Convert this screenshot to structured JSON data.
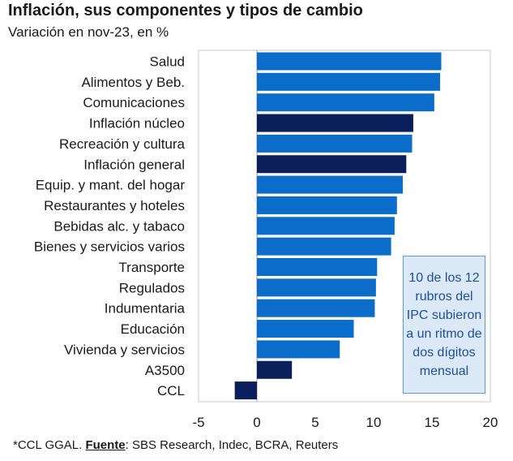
{
  "chart_data": {
    "type": "bar",
    "orientation": "horizontal",
    "title": "Inflación, sus componentes y tipos de cambio",
    "subtitle": "Variación en nov-23, en %",
    "categories": [
      "Salud",
      "Alimentos y Beb.",
      "Comunicaciones",
      "Inflación núcleo",
      "Recreación y cultura",
      "Inflación general",
      "Equip. y mant. del hogar",
      "Restaurantes y hoteles",
      "Bebidas alc. y tabaco",
      "Bienes y servicios varios",
      "Transporte",
      "Regulados",
      "Indumentaria",
      "Educación",
      "Vivienda y servicios",
      "A3500",
      "CCL"
    ],
    "values": [
      15.8,
      15.7,
      15.2,
      13.4,
      13.3,
      12.8,
      12.5,
      12.0,
      11.8,
      11.5,
      10.3,
      10.2,
      10.1,
      8.3,
      7.1,
      3.0,
      -1.9
    ],
    "colors": [
      "#0b6dc9",
      "#0b6dc9",
      "#0b6dc9",
      "#0a1f5c",
      "#0b6dc9",
      "#0a1f5c",
      "#0b6dc9",
      "#0b6dc9",
      "#0b6dc9",
      "#0b6dc9",
      "#0b6dc9",
      "#0b6dc9",
      "#0b6dc9",
      "#0b6dc9",
      "#0b6dc9",
      "#0a1f5c",
      "#0a1f5c"
    ],
    "xlim": [
      -5,
      20
    ],
    "xticks": [
      "-5",
      "0",
      "5",
      "10",
      "15",
      "20"
    ],
    "grid": false,
    "annotation": "10 de los 12 rubros del IPC subieron a un ritmo de dos dígitos mensual"
  },
  "footer": {
    "prefix": "*CCL GGAL. ",
    "source_label": "Fuente",
    "source_text": ": SBS Research, Indec, BCRA, Reuters"
  }
}
